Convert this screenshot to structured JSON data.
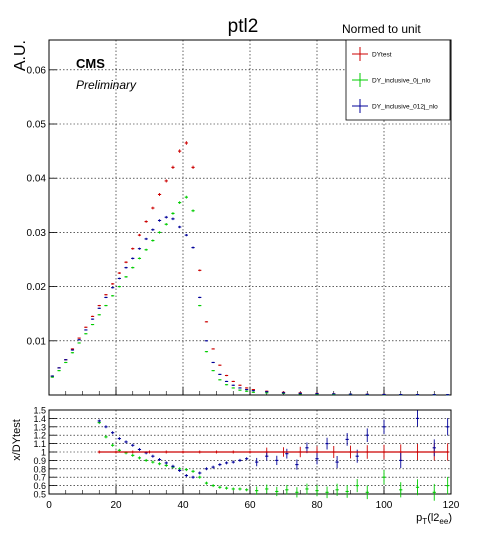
{
  "chart_data": [
    {
      "type": "scatter",
      "title": "ptl2",
      "ylabel": "A.U.",
      "xlim": [
        0,
        120
      ],
      "ylim": [
        0,
        0.0655
      ],
      "grid": true,
      "x_ticks": [
        "0",
        "20",
        "40",
        "60",
        "80",
        "100",
        "120"
      ],
      "y_ticks": [
        "0.01",
        "0.02",
        "0.03",
        "0.04",
        "0.05",
        "0.06"
      ],
      "annotations": {
        "experiment": "CMS",
        "status": "Preliminary"
      },
      "legend": {
        "title": "Normed to unit",
        "placement": "top-right",
        "entries": [
          {
            "label": "DYtest",
            "color": "#cc0000"
          },
          {
            "label": "DY_inclusive_0j_nlo",
            "color": "#00cc00"
          },
          {
            "label": "DY_inclusive_012j_nlo",
            "color": "#000099"
          }
        ]
      },
      "series": [
        {
          "name": "DYtest",
          "color": "#cc0000",
          "x": [
            1,
            3,
            5,
            7,
            9,
            11,
            13,
            15,
            17,
            19,
            21,
            23,
            25,
            27,
            29,
            31,
            33,
            35,
            37,
            39,
            41,
            43,
            45,
            47,
            49,
            51,
            53,
            55,
            57,
            59,
            61,
            65,
            70,
            75,
            80,
            85,
            90,
            95,
            100,
            105,
            110,
            115,
            119
          ],
          "y": [
            0.0035,
            0.005,
            0.0065,
            0.0085,
            0.0105,
            0.0125,
            0.0145,
            0.0165,
            0.0185,
            0.0205,
            0.0225,
            0.0245,
            0.027,
            0.0295,
            0.032,
            0.0345,
            0.037,
            0.0395,
            0.042,
            0.045,
            0.0465,
            0.042,
            0.023,
            0.0135,
            0.0085,
            0.0055,
            0.0036,
            0.0025,
            0.0018,
            0.0013,
            0.001,
            0.0007,
            0.0005,
            0.0004,
            0.0003,
            0.0002,
            0.00015,
            0.00012,
            0.0001,
            8e-05,
            6e-05,
            5e-05,
            4e-05
          ]
        },
        {
          "name": "DY_inclusive_0j_nlo",
          "color": "#00cc00",
          "x": [
            1,
            3,
            5,
            7,
            9,
            11,
            13,
            15,
            17,
            19,
            21,
            23,
            25,
            27,
            29,
            31,
            33,
            35,
            37,
            39,
            41,
            43,
            45,
            47,
            49,
            51,
            53,
            55,
            57,
            59,
            61,
            65,
            70,
            75,
            80,
            85,
            90,
            95,
            100,
            105,
            110,
            115,
            119
          ],
          "y": [
            0.0033,
            0.0045,
            0.006,
            0.0078,
            0.0096,
            0.0113,
            0.013,
            0.0148,
            0.0165,
            0.0183,
            0.02,
            0.0218,
            0.0235,
            0.0252,
            0.0268,
            0.0285,
            0.03,
            0.0315,
            0.0335,
            0.0355,
            0.0365,
            0.034,
            0.0165,
            0.008,
            0.0045,
            0.0028,
            0.0019,
            0.0013,
            0.0009,
            0.0007,
            0.0005,
            0.0004,
            0.0003,
            0.0002,
            0.00015,
            0.0001,
            0.0001,
            8e-05,
            7e-05,
            6e-05,
            5e-05,
            4e-05,
            3e-05
          ]
        },
        {
          "name": "DY_inclusive_012j_nlo",
          "color": "#000099",
          "x": [
            1,
            3,
            5,
            7,
            9,
            11,
            13,
            15,
            17,
            19,
            21,
            23,
            25,
            27,
            29,
            31,
            33,
            35,
            37,
            39,
            41,
            43,
            45,
            47,
            49,
            51,
            53,
            55,
            57,
            59,
            61,
            65,
            70,
            75,
            80,
            85,
            90,
            95,
            100,
            105,
            110,
            115,
            119
          ],
          "y": [
            0.0035,
            0.005,
            0.0065,
            0.0083,
            0.0102,
            0.012,
            0.014,
            0.016,
            0.018,
            0.0198,
            0.0215,
            0.0235,
            0.0252,
            0.027,
            0.0288,
            0.0305,
            0.0322,
            0.0328,
            0.0325,
            0.031,
            0.0295,
            0.0272,
            0.018,
            0.01,
            0.006,
            0.0038,
            0.0025,
            0.0018,
            0.0013,
            0.001,
            0.0008,
            0.0006,
            0.0004,
            0.0003,
            0.00025,
            0.0002,
            0.00015,
            0.00012,
            0.0001,
            8e-05,
            7e-05,
            6e-05,
            5e-05
          ]
        }
      ]
    },
    {
      "type": "scatter",
      "ylabel": "x/DYtest",
      "xlabel": "p_{T}(l2_{ee})",
      "xlim": [
        0,
        120
      ],
      "ylim": [
        0.5,
        1.5
      ],
      "grid": true,
      "x_ticks": [
        "0",
        "20",
        "40",
        "60",
        "80",
        "100",
        "120"
      ],
      "y_ticks": [
        "0.5",
        "0.6",
        "0.7",
        "0.8",
        "0.9",
        "1",
        "1.1",
        "1.2",
        "1.3",
        "1.4",
        "1.5"
      ],
      "series": [
        {
          "name": "DYtest",
          "color": "#cc0000",
          "x": [
            15,
            20,
            25,
            30,
            35,
            40,
            45,
            50,
            55,
            60,
            65,
            70,
            75,
            80,
            85,
            90,
            95,
            100,
            105,
            110,
            115,
            119
          ],
          "y": [
            1,
            1,
            1,
            1,
            1,
            1,
            1,
            1,
            1,
            1,
            1,
            1,
            1,
            1,
            1,
            1,
            1,
            1,
            1,
            1,
            1,
            1
          ]
        },
        {
          "name": "DY_inclusive_0j_nlo",
          "color": "#00cc00",
          "x": [
            15,
            17,
            19,
            21,
            23,
            25,
            27,
            29,
            31,
            33,
            35,
            37,
            39,
            41,
            43,
            45,
            47,
            49,
            51,
            53,
            55,
            57,
            59,
            62,
            65,
            68,
            71,
            74,
            77,
            80,
            83,
            86,
            89,
            92,
            95,
            100,
            105,
            110,
            115,
            119
          ],
          "y": [
            1.35,
            1.18,
            1.08,
            1.02,
            0.99,
            0.96,
            0.93,
            0.9,
            0.88,
            0.86,
            0.84,
            0.82,
            0.8,
            0.79,
            0.77,
            0.7,
            0.63,
            0.6,
            0.58,
            0.57,
            0.56,
            0.56,
            0.55,
            0.54,
            0.56,
            0.53,
            0.55,
            0.52,
            0.56,
            0.54,
            0.52,
            0.55,
            0.53,
            0.6,
            0.52,
            0.7,
            0.55,
            0.58,
            0.52,
            0.6
          ]
        },
        {
          "name": "DY_inclusive_012j_nlo",
          "color": "#000099",
          "x": [
            15,
            17,
            19,
            21,
            23,
            25,
            27,
            29,
            31,
            33,
            35,
            37,
            39,
            41,
            43,
            45,
            47,
            49,
            51,
            53,
            55,
            57,
            59,
            62,
            65,
            68,
            71,
            74,
            77,
            80,
            83,
            86,
            89,
            92,
            95,
            100,
            105,
            110,
            115,
            119
          ],
          "y": [
            1.37,
            1.3,
            1.23,
            1.16,
            1.12,
            1.08,
            1.03,
            0.99,
            0.95,
            0.91,
            0.87,
            0.83,
            0.78,
            0.72,
            0.7,
            0.75,
            0.8,
            0.82,
            0.85,
            0.87,
            0.88,
            0.9,
            0.92,
            0.88,
            0.95,
            0.9,
            0.98,
            0.85,
            1.05,
            0.92,
            1.1,
            0.88,
            1.15,
            0.95,
            1.2,
            1.3,
            0.9,
            1.4,
            1.05,
            1.3
          ]
        }
      ]
    }
  ]
}
